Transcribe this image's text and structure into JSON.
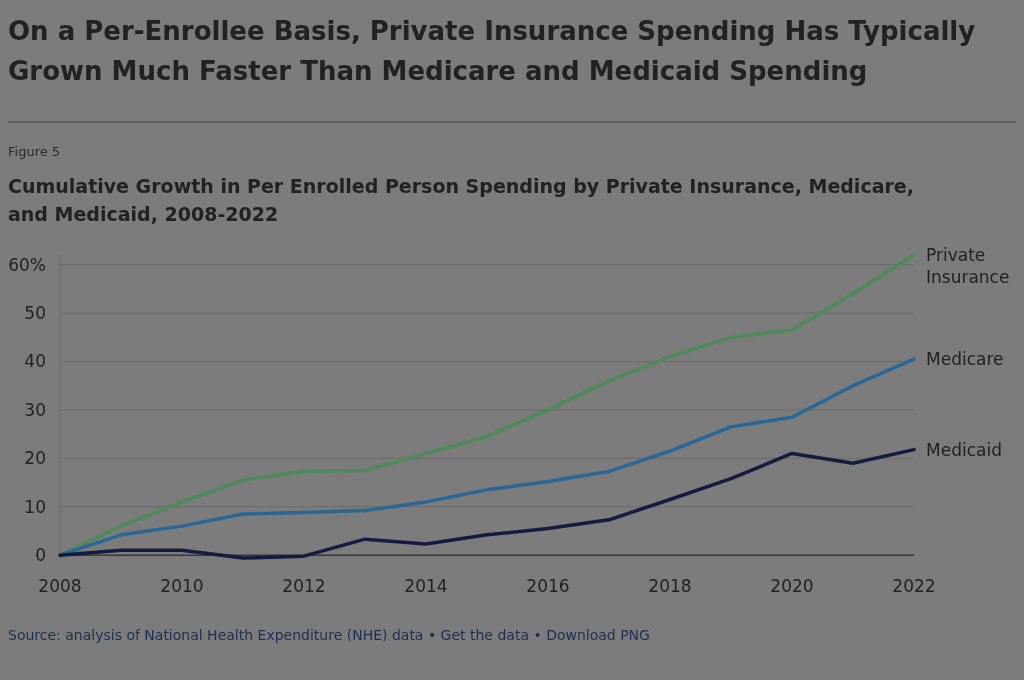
{
  "chart_data": {
    "type": "line",
    "title": "On a Per-Enrollee Basis, Private Insurance Spending Has Typically Grown Much Faster Than Medicare and Medicaid Spending",
    "subtitle": "Cumulative Growth in Per Enrolled Person Spending by Private Insurance, Medicare, and Medicaid, 2008-2022",
    "annotations": [
      "Figure 5",
      "Source: analysis of National Health Expenditure (NHE) data • Get the data • Download PNG"
    ],
    "x": [
      2008,
      2009,
      2010,
      2011,
      2012,
      2013,
      2014,
      2015,
      2016,
      2017,
      2018,
      2019,
      2020,
      2021,
      2022
    ],
    "series": [
      {
        "name": "Private Insurance",
        "color": "#4e8a5a",
        "values": [
          0,
          6,
          11,
          15.5,
          17.3,
          17.5,
          21,
          24.5,
          30,
          36,
          41,
          45,
          46.5,
          54,
          62
        ]
      },
      {
        "name": "Medicare",
        "color": "#2a6796",
        "values": [
          0,
          4.2,
          6,
          8.5,
          8.8,
          9.2,
          11,
          13.5,
          15.2,
          17.3,
          21.5,
          26.5,
          28.5,
          35,
          40.5
        ]
      },
      {
        "name": "Medicaid",
        "color": "#151c3f",
        "values": [
          0,
          1,
          1,
          -0.6,
          -0.2,
          3.3,
          2.3,
          4.2,
          5.5,
          7.3,
          11.5,
          15.8,
          21,
          19,
          21.8
        ]
      }
    ],
    "xlim": [
      2008,
      2022
    ],
    "xticks": [
      2008,
      2010,
      2012,
      2014,
      2016,
      2018,
      2020,
      2022
    ],
    "ylim": [
      -1,
      62
    ],
    "yticks": [
      0,
      10,
      20,
      30,
      40,
      {
        "value": 60,
        "label": "60%"
      },
      50
    ],
    "grid": "y",
    "legend": false,
    "marker": "none",
    "line_style": "solid"
  }
}
